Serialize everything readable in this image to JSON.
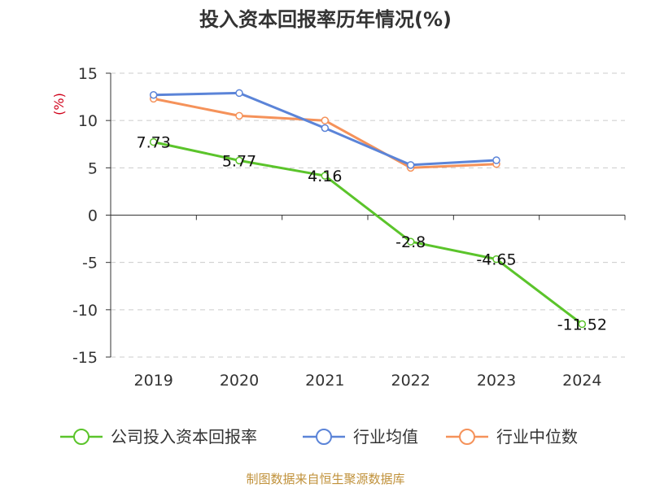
{
  "chart_data": {
    "type": "line",
    "title": "投入资本回报率历年情况(%)",
    "ylabel": "(%)",
    "xlabel": "",
    "categories": [
      "2019",
      "2020",
      "2021",
      "2022",
      "2023",
      "2024"
    ],
    "ylim": [
      -15,
      15
    ],
    "yticks": [
      15,
      10,
      5,
      0,
      -5,
      -10,
      -15
    ],
    "grid": true,
    "legend_position": "bottom",
    "series": [
      {
        "name": "公司投入资本回报率",
        "color": "#5bc42b",
        "values": [
          7.73,
          5.77,
          4.16,
          -2.8,
          -4.65,
          -11.52
        ],
        "labels": [
          "7.73",
          "5.77",
          "4.16",
          "-2.8",
          "-4.65",
          "-11.52"
        ]
      },
      {
        "name": "行业均值",
        "color": "#5b84d8",
        "values": [
          12.7,
          12.9,
          9.2,
          5.3,
          5.8,
          null
        ]
      },
      {
        "name": "行业中位数",
        "color": "#f5925a",
        "values": [
          12.3,
          10.5,
          10.0,
          5.0,
          5.4,
          null
        ]
      }
    ],
    "source": "制图数据来自恒生聚源数据库"
  }
}
